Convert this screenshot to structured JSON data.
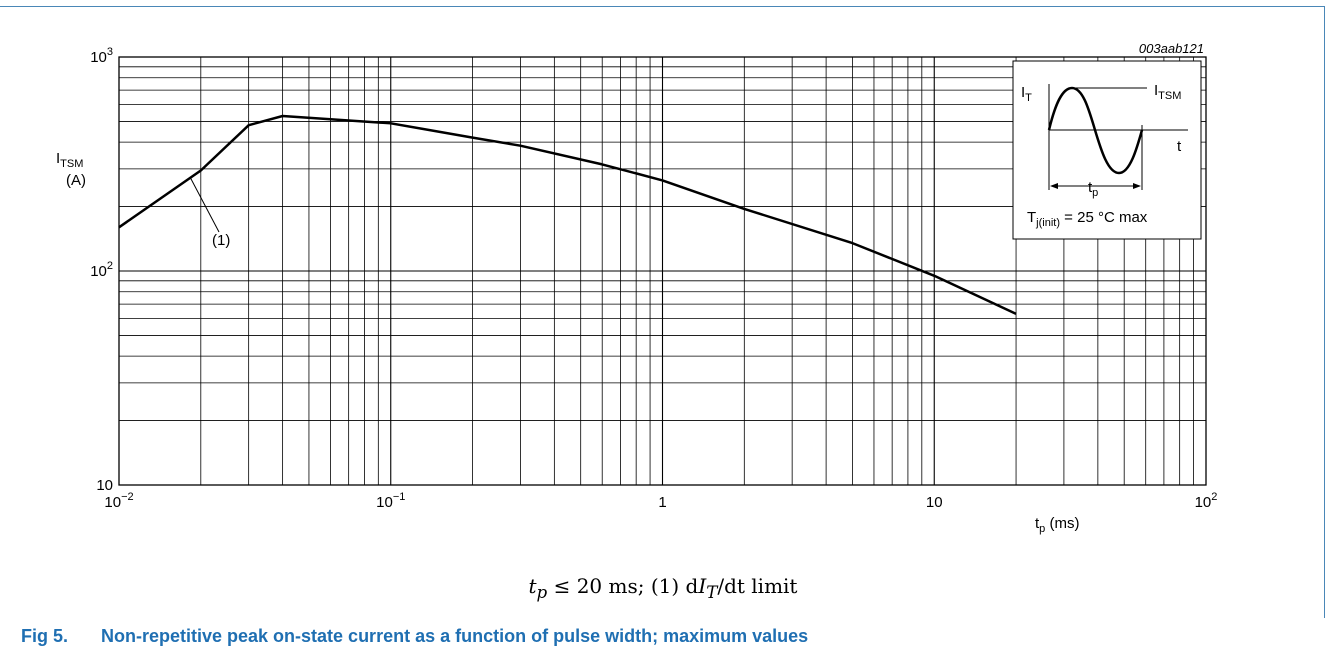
{
  "chart_data": {
    "type": "line",
    "id_label": "003aab121",
    "ylabel_main": "I",
    "ylabel_sub": "TSM",
    "ylabel_unit": "(A)",
    "xlabel_main": "t",
    "xlabel_sub": "p",
    "xlabel_unit": "(ms)",
    "x_scale": "log",
    "y_scale": "log",
    "xlim": [
      0.01,
      100
    ],
    "ylim": [
      10,
      1000
    ],
    "grid": true,
    "x_ticks": [
      {
        "value": 0.01,
        "base": "10",
        "exp": "−2"
      },
      {
        "value": 0.1,
        "base": "10",
        "exp": "−1"
      },
      {
        "value": 1,
        "base": "1",
        "exp": ""
      },
      {
        "value": 10,
        "base": "10",
        "exp": ""
      },
      {
        "value": 100,
        "base": "10",
        "exp": "2"
      }
    ],
    "y_ticks": [
      {
        "value": 10,
        "base": "10",
        "exp": ""
      },
      {
        "value": 100,
        "base": "10",
        "exp": "2"
      },
      {
        "value": 1000,
        "base": "10",
        "exp": "3"
      }
    ],
    "series": [
      {
        "x": [
          0.01,
          0.02,
          0.03,
          0.04,
          0.1,
          0.2,
          0.3,
          0.6,
          1,
          2,
          5,
          10,
          20
        ],
        "y": [
          160,
          295,
          480,
          530,
          490,
          420,
          385,
          315,
          265,
          195,
          135,
          95,
          63
        ]
      }
    ],
    "annotation": {
      "text": "(1)",
      "x": 0.02,
      "y": 300
    },
    "inset": {
      "it_main": "I",
      "it_sub": "T",
      "itsm_main": "I",
      "itsm_sub": "TSM",
      "t_label": "t",
      "tp_main": "t",
      "tp_sub": "p",
      "tj_main": "T",
      "tj_sub": "j(init)",
      "tj_rest": " = 25 °C max"
    }
  },
  "note": {
    "tp": "t",
    "tp_sub": "p",
    "rest1": " ≤ 20 ms; (1) d",
    "it": "I",
    "it_sub": "T",
    "rest2": "/dt limit"
  },
  "caption": {
    "number": "Fig 5.",
    "text": "Non-repetitive peak on-state current as a function of pulse width; maximum values"
  },
  "colors": {
    "accent": "#1f6fb2",
    "frame": "#4a87b7"
  }
}
